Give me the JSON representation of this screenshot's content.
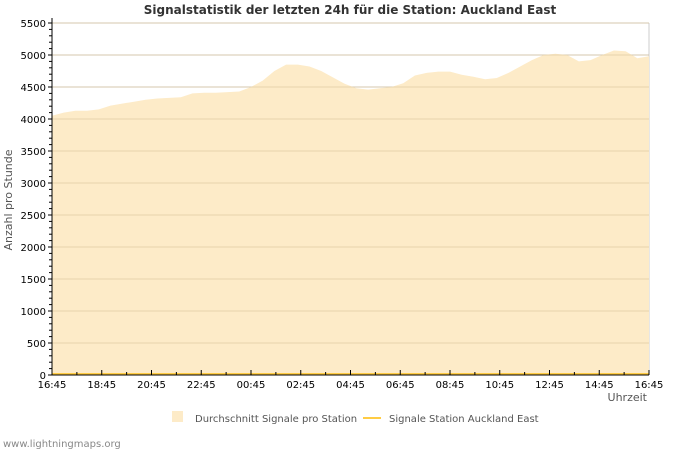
{
  "chart_data": {
    "type": "area",
    "title": "Signalstatistik der letzten 24h für die Station: Auckland East",
    "xlabel": "Uhrzeit",
    "ylabel": "Anzahl pro Stunde",
    "ylim": [
      0,
      5500
    ],
    "yticks": [
      "0",
      "500",
      "1000",
      "1500",
      "2000",
      "2500",
      "3000",
      "3500",
      "4000",
      "4500",
      "5000",
      "5500"
    ],
    "xticks": [
      "16:45",
      "18:45",
      "20:45",
      "22:45",
      "00:45",
      "02:45",
      "04:45",
      "06:45",
      "08:45",
      "10:45",
      "12:45",
      "14:45",
      "16:45"
    ],
    "grid": true,
    "legend_position": "bottom",
    "series": [
      {
        "name": "Durchschnitt Signale pro Station",
        "type": "area",
        "color": "#fdebc8",
        "values": [
          4050,
          4100,
          4130,
          4130,
          4150,
          4210,
          4240,
          4270,
          4300,
          4320,
          4330,
          4340,
          4400,
          4410,
          4410,
          4420,
          4430,
          4500,
          4600,
          4750,
          4850,
          4850,
          4820,
          4750,
          4650,
          4550,
          4480,
          4460,
          4480,
          4500,
          4560,
          4680,
          4720,
          4740,
          4740,
          4690,
          4660,
          4620,
          4640,
          4720,
          4820,
          4920,
          5000,
          5020,
          5000,
          4900,
          4920,
          5000,
          5070,
          5060,
          4950,
          4980
        ]
      },
      {
        "name": "Signale Station Auckland East",
        "type": "line",
        "color": "#ffcc44",
        "values": [
          0,
          0
        ]
      }
    ]
  },
  "footer": "www.lightningmaps.org"
}
